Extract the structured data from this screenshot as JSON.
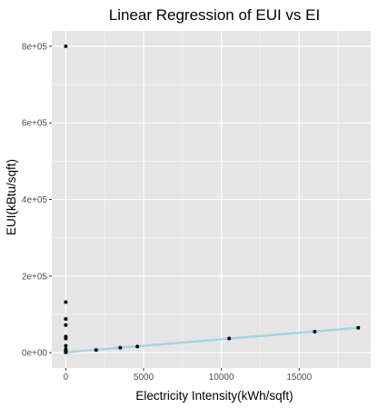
{
  "chart_data": {
    "type": "scatter",
    "title": "Linear Regression of EUI vs EI",
    "xlabel": "Electricity Intensity(kWh/sqft)",
    "ylabel": "EUI(kBtu/sqft)",
    "xlim": [
      -900,
      19600
    ],
    "ylim": [
      -40000,
      840000
    ],
    "x_ticks": [
      0,
      5000,
      10000,
      15000
    ],
    "x_tick_labels": [
      "0",
      "5000",
      "10000",
      "15000"
    ],
    "y_ticks": [
      0,
      200000,
      400000,
      600000,
      800000
    ],
    "y_tick_labels": [
      "0e+00",
      "2e+05",
      "4e+05",
      "6e+05",
      "8e+05"
    ],
    "grid": true,
    "point_color": "#000000",
    "regression_color": "#a6d4e3",
    "panel_background": "#e5e5e5",
    "grid_color": "#ffffff",
    "series": [
      {
        "points": [
          {
            "x": 0,
            "y": 800000
          },
          {
            "x": 0,
            "y": 132000
          },
          {
            "x": 0,
            "y": 88000
          },
          {
            "x": 0,
            "y": 72000
          },
          {
            "x": 0,
            "y": 42000
          },
          {
            "x": 0,
            "y": 37000
          },
          {
            "x": 0,
            "y": 18000
          },
          {
            "x": 0,
            "y": 9000
          },
          {
            "x": 0,
            "y": 5000
          },
          {
            "x": 0,
            "y": 2000
          },
          {
            "x": 0,
            "y": 800
          },
          {
            "x": 1950,
            "y": 7000
          },
          {
            "x": 3500,
            "y": 13000
          },
          {
            "x": 4600,
            "y": 16000
          },
          {
            "x": 10500,
            "y": 37000
          },
          {
            "x": 16000,
            "y": 55000
          },
          {
            "x": 18800,
            "y": 65000
          }
        ]
      }
    ],
    "regression_line": {
      "x": [
        0,
        18800
      ],
      "y": [
        1000,
        65000
      ]
    }
  }
}
